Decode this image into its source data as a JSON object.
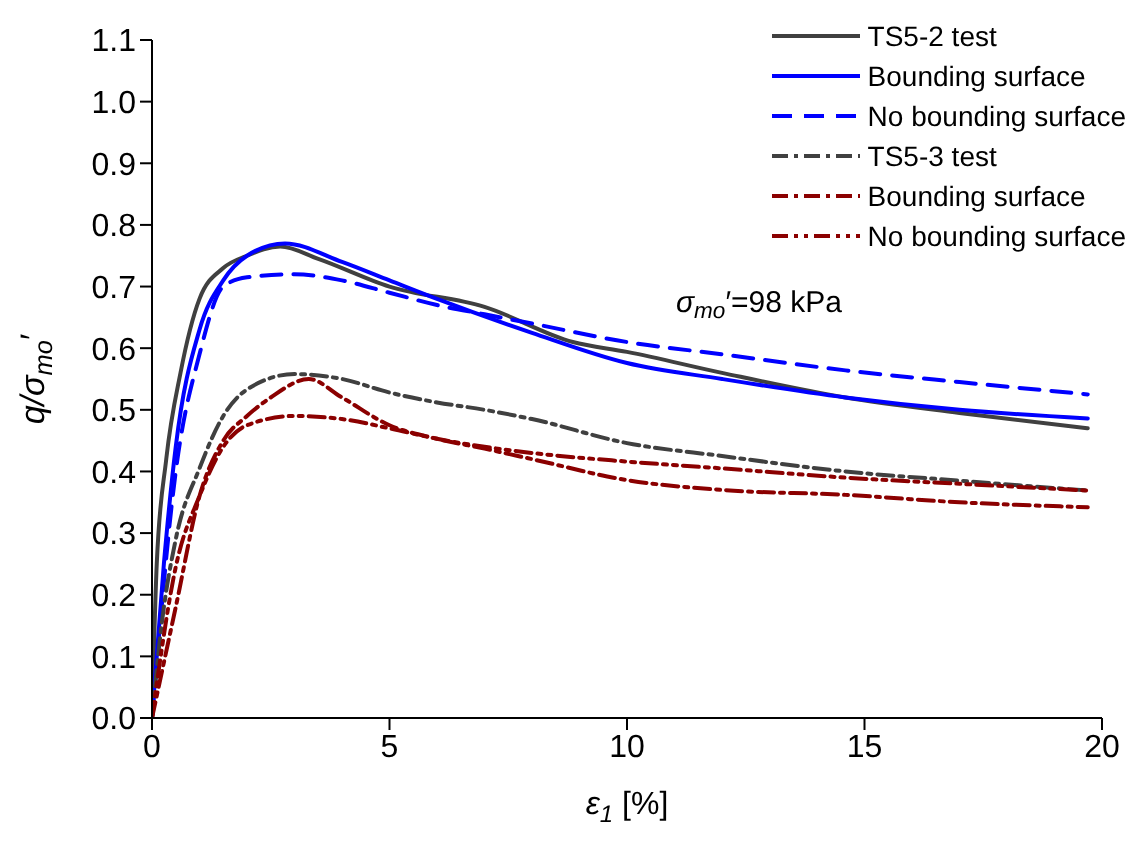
{
  "chart_data": {
    "type": "line",
    "xlabel": "ε$_{1}$ [%]",
    "ylabel": "q/σ$_{mo}$′",
    "annotations": [
      "σ$_{mo}$′=98 kPa"
    ],
    "xlim": [
      0,
      20
    ],
    "xticks": [
      0,
      5,
      10,
      15,
      20
    ],
    "ylim": [
      0,
      1.1
    ],
    "yticks": [
      {
        "value": 0,
        "label": "0.0"
      },
      {
        "value": 0.1,
        "label": "0.1"
      },
      {
        "value": 0.2,
        "label": "0.2"
      },
      {
        "value": 0.3,
        "label": "0.3"
      },
      {
        "value": 0.4,
        "label": "0.4"
      },
      {
        "value": 0.5,
        "label": "0.5"
      },
      {
        "value": 0.6,
        "label": "0.6"
      },
      {
        "value": 0.7,
        "label": "0.7"
      },
      {
        "value": 0.8,
        "label": "0.8"
      },
      {
        "value": 0.9,
        "label": "0.9"
      },
      {
        "value": 1.0,
        "label": "1.0"
      },
      {
        "value": 1.1,
        "label": "1.1"
      }
    ],
    "grid": false,
    "legend": "top right",
    "marker": "none",
    "series": [
      {
        "name": "TS5-2 test",
        "color": "#404040",
        "line_style": "solid",
        "x": [
          0,
          0.1,
          0.3,
          0.6,
          1,
          1.5,
          2,
          2.7,
          3.5,
          5,
          7,
          8.86,
          10,
          12,
          14.6,
          17,
          19.7
        ],
        "values": [
          0,
          0.25,
          0.42,
          0.56,
          0.68,
          0.73,
          0.75,
          0.765,
          0.745,
          0.7,
          0.667,
          0.61,
          0.594,
          0.56,
          0.52,
          0.495,
          0.47
        ]
      },
      {
        "name": "Bounding surface",
        "color": "#0000ff",
        "line_style": "solid",
        "x": [
          0,
          0.25,
          0.5,
          1,
          1.5,
          2,
          2.8,
          4,
          5,
          6,
          8,
          10,
          12,
          14.6,
          17,
          19.7
        ],
        "values": [
          0,
          0.25,
          0.44,
          0.63,
          0.71,
          0.75,
          0.77,
          0.74,
          0.71,
          0.68,
          0.625,
          0.576,
          0.55,
          0.52,
          0.5,
          0.486
        ]
      },
      {
        "name": "No bounding surface",
        "color": "#0000ff",
        "line_style": "dashed",
        "x": [
          0,
          0.5,
          1,
          1.5,
          2,
          3,
          4,
          5,
          6,
          7,
          8,
          10,
          12,
          14.6,
          17,
          19.7
        ],
        "values": [
          0,
          0.4,
          0.59,
          0.7,
          0.715,
          0.72,
          0.71,
          0.69,
          0.67,
          0.655,
          0.64,
          0.61,
          0.59,
          0.564,
          0.545,
          0.525
        ]
      },
      {
        "name": "TS5-3 test",
        "color": "#404040",
        "line_style": "dashdot",
        "x": [
          0,
          0.2,
          0.5,
          1,
          1.5,
          2,
          3,
          4,
          5,
          6,
          7,
          8,
          10,
          12,
          14.6,
          17,
          19.7
        ],
        "values": [
          0,
          0.15,
          0.29,
          0.405,
          0.49,
          0.533,
          0.558,
          0.55,
          0.528,
          0.512,
          0.5,
          0.485,
          0.446,
          0.425,
          0.4,
          0.385,
          0.369
        ]
      },
      {
        "name": "Bounding surface",
        "color": "#8b0000",
        "line_style": "dashdot",
        "x": [
          0,
          0.5,
          1,
          1.5,
          2,
          2.5,
          3.3,
          4,
          5,
          6,
          7,
          8,
          10,
          12,
          14.6,
          17,
          19.7
        ],
        "values": [
          0,
          0.18,
          0.36,
          0.45,
          0.49,
          0.52,
          0.55,
          0.52,
          0.475,
          0.453,
          0.437,
          0.42,
          0.386,
          0.37,
          0.362,
          0.35,
          0.342
        ]
      },
      {
        "name": "No bounding surface",
        "color": "#8b0000",
        "line_style": "dashdotdot",
        "x": [
          0,
          0.5,
          1,
          1.5,
          2,
          3,
          4,
          5,
          6,
          8,
          10,
          12,
          14.6,
          17,
          19.7
        ],
        "values": [
          0,
          0.245,
          0.36,
          0.44,
          0.475,
          0.49,
          0.485,
          0.47,
          0.453,
          0.43,
          0.416,
          0.405,
          0.39,
          0.38,
          0.369
        ]
      }
    ]
  }
}
